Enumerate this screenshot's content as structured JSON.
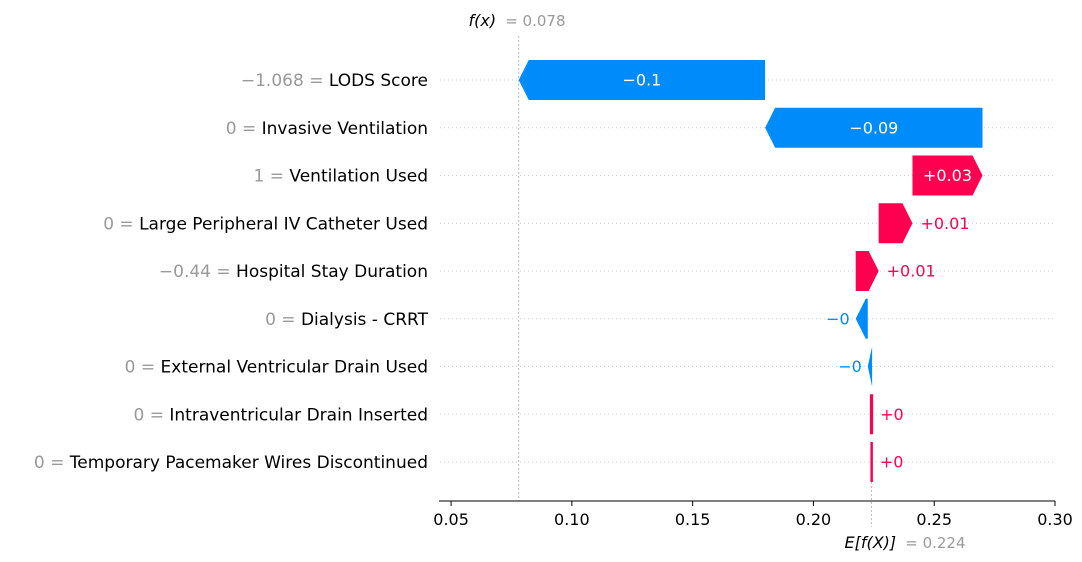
{
  "chart_data": {
    "type": "bar",
    "subtype": "waterfall",
    "title": "",
    "xlabel": "",
    "ylabel": "",
    "xlim": [
      0.045,
      0.3
    ],
    "xticks": [
      0.05,
      0.1,
      0.15,
      0.2,
      0.25,
      0.3
    ],
    "xtick_labels": [
      "0.05",
      "0.10",
      "0.15",
      "0.20",
      "0.25",
      "0.30"
    ],
    "fx": {
      "label": "f(x)",
      "value_text": "= 0.078",
      "value": 0.078
    },
    "base": {
      "label": "E[f(X)]",
      "value_text": "= 0.224",
      "value": 0.224
    },
    "colors": {
      "positive": "#ff0051",
      "negative": "#008bfb",
      "muted": "#999999"
    },
    "grid": "horizontal dotted",
    "features": [
      {
        "value_text": "−1.068",
        "name": "LODS Score",
        "start": 0.18,
        "end": 0.078,
        "label": "−0.1",
        "label_inside": true
      },
      {
        "value_text": "0",
        "name": "Invasive Ventilation",
        "start": 0.27,
        "end": 0.18,
        "label": "−0.09",
        "label_inside": true
      },
      {
        "value_text": "1",
        "name": "Ventilation Used",
        "start": 0.241,
        "end": 0.27,
        "label": "+0.03",
        "label_inside": true
      },
      {
        "value_text": "0",
        "name": "Large Peripheral IV Catheter Used",
        "start": 0.227,
        "end": 0.241,
        "label": "+0.01",
        "label_inside": false
      },
      {
        "value_text": "−0.44",
        "name": "Hospital Stay Duration",
        "start": 0.2175,
        "end": 0.227,
        "label": "+0.01",
        "label_inside": false
      },
      {
        "value_text": "0",
        "name": "Dialysis - CRRT",
        "start": 0.2225,
        "end": 0.2175,
        "label": "−0",
        "label_inside": false
      },
      {
        "value_text": "0",
        "name": "External Ventricular Drain Used",
        "start": 0.2243,
        "end": 0.2225,
        "label": "−0",
        "label_inside": false
      },
      {
        "value_text": "0",
        "name": "Intraventricular Drain Inserted",
        "start": 0.2238,
        "end": 0.2243,
        "label": "+0",
        "label_inside": false
      },
      {
        "value_text": "0",
        "name": "Temporary Pacemaker Wires Discontinued",
        "start": 0.224,
        "end": 0.2242,
        "label": "+0",
        "label_inside": false
      }
    ]
  }
}
